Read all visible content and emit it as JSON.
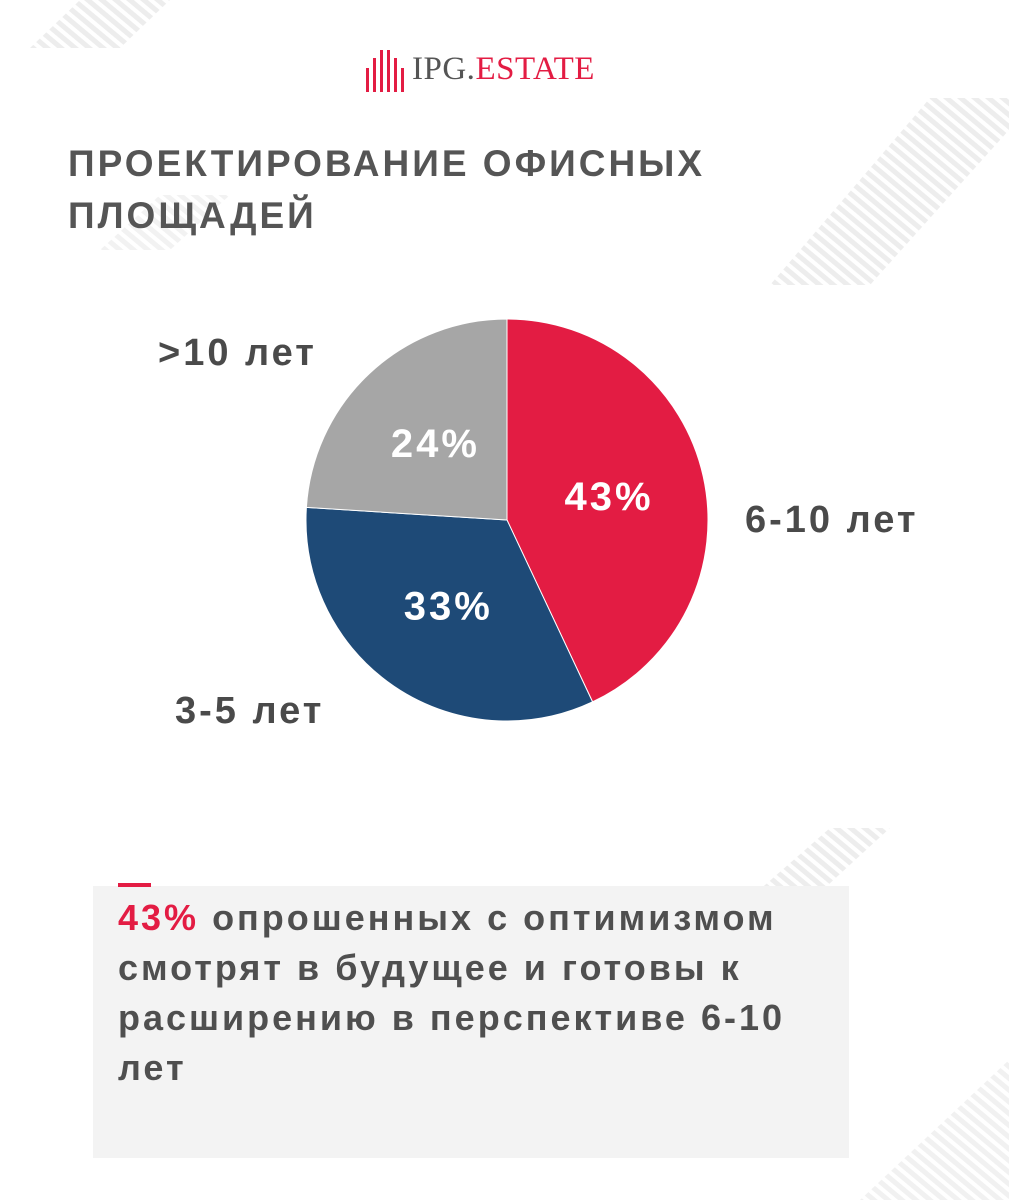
{
  "brand": {
    "name_primary": "IPG.",
    "name_accent": "ESTATE"
  },
  "colors": {
    "accent": "#e31c43",
    "navy": "#1e4a77",
    "gray": "#a6a6a6",
    "text": "#555555"
  },
  "title": "ПРОЕКТИРОВАНИЕ ОФИСНЫХ ПЛОЩАДЕЙ",
  "chart_data": {
    "type": "pie",
    "title": "",
    "slices": [
      {
        "label": "6-10 лет",
        "value": 43,
        "value_label": "43%",
        "color": "#e31c43"
      },
      {
        "label": "3-5 лет",
        "value": 33,
        "value_label": "33%",
        "color": "#1e4a77"
      },
      {
        "label": ">10 лет",
        "value": 24,
        "value_label": "24%",
        "color": "#a6a6a6"
      }
    ],
    "start_angle_deg": 0,
    "direction": "clockwise",
    "legend": "none"
  },
  "note": {
    "highlight": "43%",
    "text": " опрошенных с оптимизмом смотрят в будущее и готовы к расширению в перспективе 6-10 лет"
  }
}
